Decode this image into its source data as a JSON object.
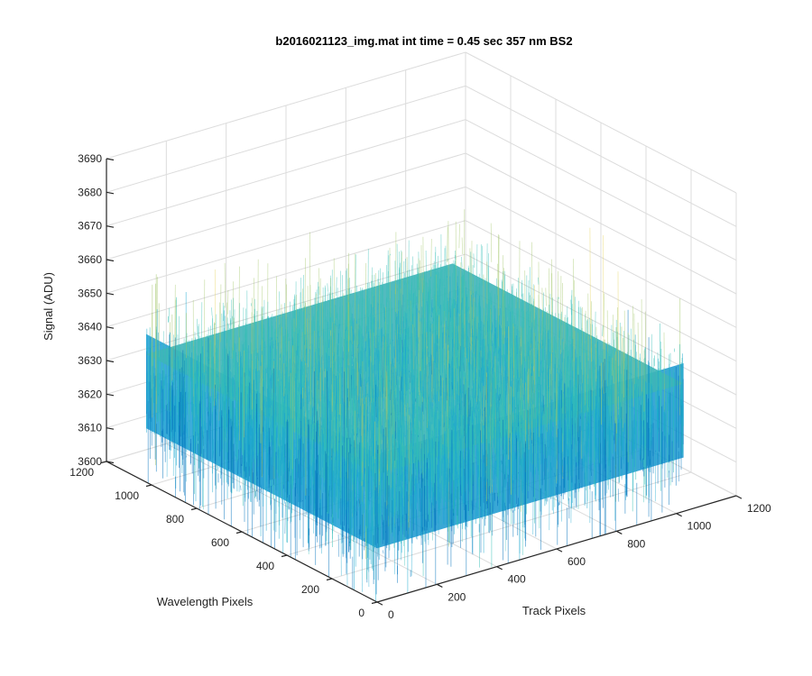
{
  "chart_data": {
    "type": "surface",
    "title": "b2016021123_img.mat int time = 0.45 sec  357 nm BS2",
    "xlabel": "Track Pixels",
    "ylabel": "Wavelength Pixels",
    "zlabel": "Signal (ADU)",
    "xlim": [
      0,
      1200
    ],
    "ylim": [
      0,
      1200
    ],
    "zlim": [
      3600,
      3690
    ],
    "x_ticks": [
      "0",
      "200",
      "400",
      "600",
      "800",
      "1000",
      "1200"
    ],
    "y_ticks": [
      "0",
      "200",
      "400",
      "600",
      "800",
      "1000",
      "1200"
    ],
    "z_ticks": [
      "3600",
      "3610",
      "3620",
      "3630",
      "3640",
      "3650",
      "3660",
      "3670",
      "3680",
      "3690"
    ],
    "data_extent": {
      "x": [
        0,
        1024
      ],
      "y": [
        0,
        1024
      ]
    },
    "mean_signal": 3630,
    "noise_range": [
      3605,
      3685
    ],
    "colormap": [
      "#0072bd",
      "#1aa8cf",
      "#35c0b6",
      "#a3c76a",
      "#e6d35a"
    ],
    "grid": true
  }
}
